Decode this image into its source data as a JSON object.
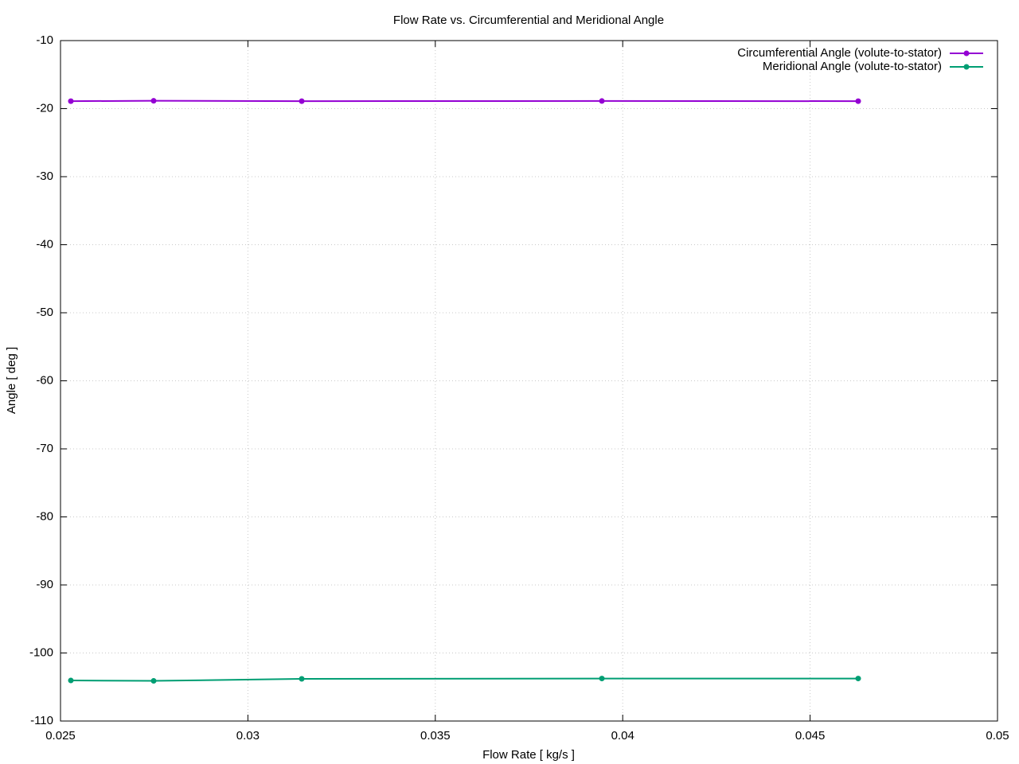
{
  "chart_data": {
    "type": "line",
    "title": "Flow Rate vs. Circumferential and Meridional Angle",
    "x_label": "Flow Rate [ kg/s ]",
    "y_label": "Angle [ deg ]",
    "x": [
      0.025276,
      0.027485,
      0.031436,
      0.039444,
      0.046283
    ],
    "series": [
      {
        "name": "Circumferential Angle (volute-to-stator)",
        "color": "#9400d3",
        "values": [
          -18.9,
          -18.85,
          -18.9,
          -18.88,
          -18.9
        ]
      },
      {
        "name": "Meridional Angle (volute-to-stator)",
        "color": "#009e73",
        "values": [
          -104.04,
          -104.1,
          -103.8,
          -103.75,
          -103.75
        ]
      }
    ],
    "xlim": [
      0.025,
      0.05
    ],
    "xticks": [
      0.025,
      0.03,
      0.035,
      0.04,
      0.045,
      0.05
    ],
    "ylim": [
      -110,
      -10
    ],
    "yticks": [
      -110,
      -100,
      -90,
      -80,
      -70,
      -60,
      -50,
      -40,
      -30,
      -20,
      -10
    ],
    "grid": true,
    "legend": "top-right"
  }
}
